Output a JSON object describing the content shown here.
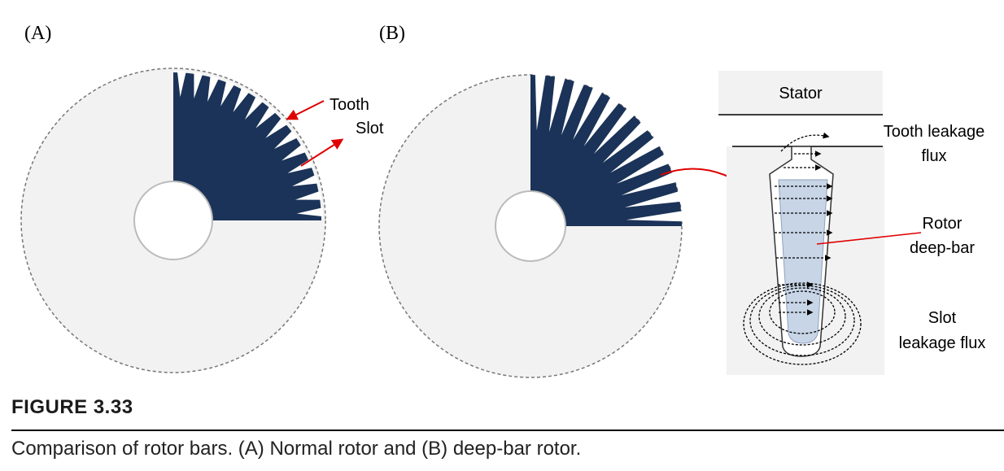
{
  "panels": {
    "a_label": "(A)",
    "b_label": "(B)"
  },
  "callouts": {
    "tooth": "Tooth",
    "slot": "Slot",
    "stator": "Stator",
    "tooth_leakage_line1": "Tooth leakage",
    "tooth_leakage_line2": "flux",
    "rotor_line1": "Rotor",
    "rotor_line2": "deep-bar",
    "slot_leakage_line1": "Slot",
    "slot_leakage_line2": "leakage flux"
  },
  "caption": {
    "heading": "FIGURE 3.33",
    "text": "Comparison of rotor bars. (A) Normal rotor and (B) deep-bar rotor."
  },
  "colors": {
    "rotor_fill": "#1b3358",
    "disc_fill": "#f2f2f2",
    "arrow": "#e00000",
    "bar_fill": "#c7d5e6"
  }
}
